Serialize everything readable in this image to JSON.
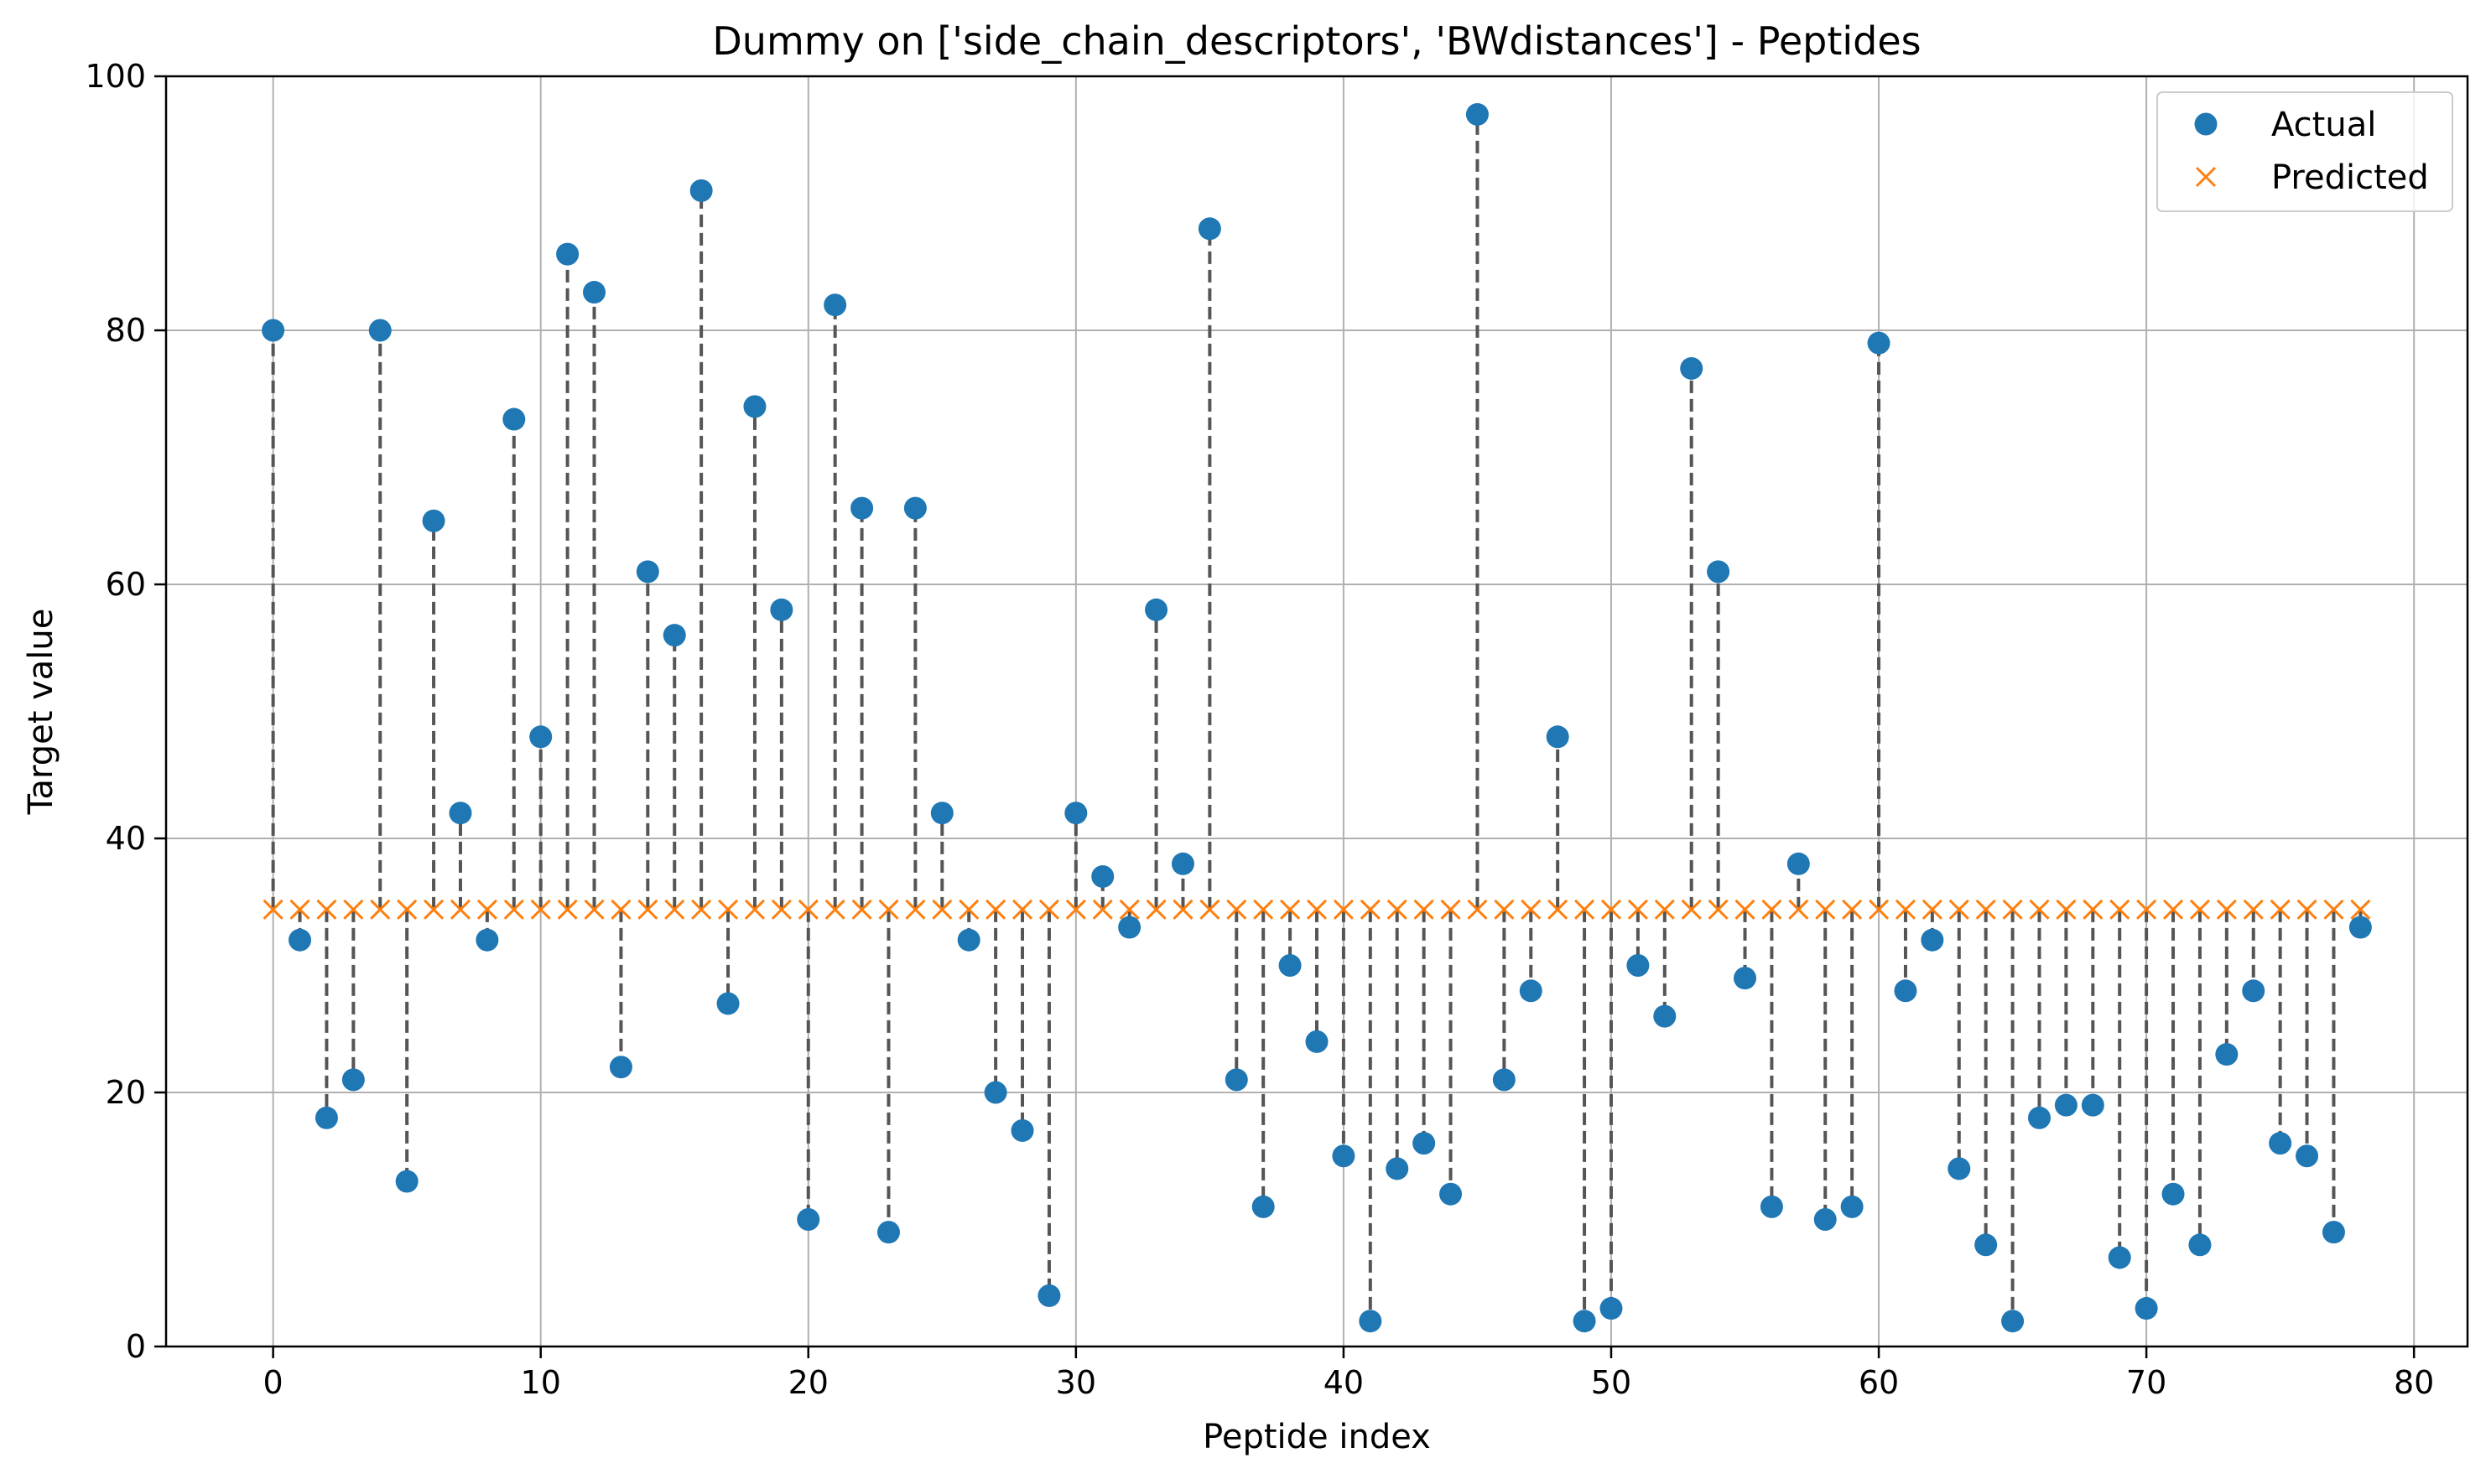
{
  "chart_data": {
    "type": "scatter",
    "title": "Dummy on ['side_chain_descriptors', 'BWdistances'] - Peptides",
    "xlabel": "Peptide index",
    "ylabel": "Target value",
    "xlim": [
      -4,
      82
    ],
    "ylim": [
      0,
      100
    ],
    "xticks": [
      0,
      10,
      20,
      30,
      40,
      50,
      60,
      70,
      80
    ],
    "yticks": [
      0,
      20,
      40,
      60,
      80,
      100
    ],
    "grid": true,
    "legend_position": "top-right",
    "x": [
      0,
      1,
      2,
      3,
      4,
      5,
      6,
      7,
      8,
      9,
      10,
      11,
      12,
      13,
      14,
      15,
      16,
      17,
      18,
      19,
      20,
      21,
      22,
      23,
      24,
      25,
      26,
      27,
      28,
      29,
      30,
      31,
      32,
      33,
      34,
      35,
      36,
      37,
      38,
      39,
      40,
      41,
      42,
      43,
      44,
      45,
      46,
      47,
      48,
      49,
      50,
      51,
      52,
      53,
      54,
      55,
      56,
      57,
      58,
      59,
      60,
      61,
      62,
      63,
      64,
      65,
      66,
      67,
      68,
      69,
      70,
      71,
      72,
      73,
      74,
      75,
      76,
      77,
      78
    ],
    "series": [
      {
        "name": "Actual",
        "marker": "circle",
        "color": "#1f77b4",
        "values": [
          80,
          32,
          18,
          21,
          80,
          13,
          65,
          42,
          32,
          73,
          48,
          86,
          83,
          22,
          61,
          56,
          91,
          27,
          74,
          58,
          10,
          82,
          66,
          9,
          66,
          42,
          32,
          20,
          17,
          4,
          42,
          37,
          33,
          58,
          38,
          88,
          21,
          11,
          30,
          24,
          15,
          2,
          14,
          16,
          12,
          97,
          21,
          28,
          48,
          2,
          3,
          30,
          26,
          77,
          61,
          29,
          11,
          38,
          10,
          11,
          79,
          28,
          32,
          14,
          8,
          2,
          18,
          19,
          19,
          7,
          3,
          12,
          8,
          23,
          28,
          16,
          15,
          9,
          33
        ]
      },
      {
        "name": "Predicted",
        "marker": "x",
        "color": "#ff7f0e",
        "values": [
          34.4,
          34.4,
          34.4,
          34.4,
          34.4,
          34.4,
          34.4,
          34.4,
          34.4,
          34.4,
          34.4,
          34.4,
          34.4,
          34.4,
          34.4,
          34.4,
          34.4,
          34.4,
          34.4,
          34.4,
          34.4,
          34.4,
          34.4,
          34.4,
          34.4,
          34.4,
          34.4,
          34.4,
          34.4,
          34.4,
          34.4,
          34.4,
          34.4,
          34.4,
          34.4,
          34.4,
          34.4,
          34.4,
          34.4,
          34.4,
          34.4,
          34.4,
          34.4,
          34.4,
          34.4,
          34.4,
          34.4,
          34.4,
          34.4,
          34.4,
          34.4,
          34.4,
          34.4,
          34.4,
          34.4,
          34.4,
          34.4,
          34.4,
          34.4,
          34.4,
          34.4,
          34.4,
          34.4,
          34.4,
          34.4,
          34.4,
          34.4,
          34.4,
          34.4,
          34.4,
          34.4,
          34.4,
          34.4,
          34.4,
          34.4,
          34.4,
          34.4,
          34.4,
          34.4
        ]
      }
    ],
    "residual_line_color": "#555555"
  }
}
